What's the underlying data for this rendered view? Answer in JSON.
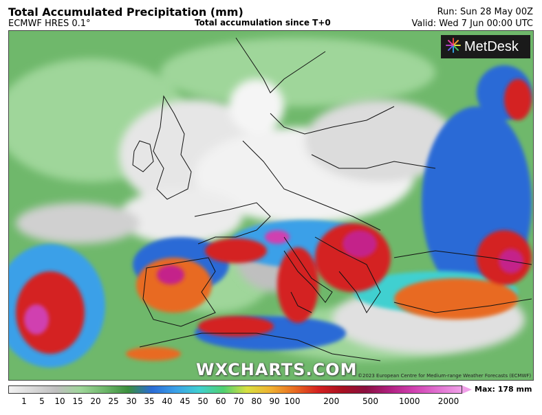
{
  "header": {
    "title": "Total Accumulated Precipitation (mm)",
    "model": "ECMWF HRES 0.1°",
    "subtitle": "Total accumulation since T+0",
    "run": "Run: Sun 28 May 00Z",
    "valid": "Valid: Wed 7 Jun 00:00 UTC"
  },
  "logo": {
    "text": "MetDesk",
    "icon": "metdesk-starburst-icon"
  },
  "watermark": "WXCHARTS.COM",
  "copyright": "©2023 European Centre for Medium-range Weather Forecasts (ECMWF)",
  "legend": {
    "max_label": "Max: 178 mm",
    "ticks": [
      "1",
      "5",
      "10",
      "15",
      "20",
      "25",
      "30",
      "35",
      "40",
      "45",
      "50",
      "60",
      "70",
      "80",
      "90",
      "100",
      "200",
      "500",
      "1000",
      "2000"
    ],
    "colors": [
      "#f2f2f2",
      "#d9d9d9",
      "#bfbfbf",
      "#9fd69a",
      "#6fb86b",
      "#3b8f3d",
      "#2a6bd6",
      "#3aa0e8",
      "#40d0d0",
      "#50d070",
      "#d8e040",
      "#f0b030",
      "#e86a20",
      "#d42020",
      "#a81020",
      "#8a1040",
      "#b02080",
      "#d040b0",
      "#e070d0",
      "#f0a0e8"
    ]
  },
  "map": {
    "region": "Europe",
    "colors": {
      "dry": "#f5f5f5",
      "light": "#d0d0d0",
      "green": "#6fb86b",
      "dark_green": "#3b8f3d",
      "blue": "#2a6bd6",
      "cyan": "#40d0d0",
      "yellow": "#d8e040",
      "orange": "#e86a20",
      "red": "#d42020",
      "magenta": "#c4248a"
    }
  }
}
